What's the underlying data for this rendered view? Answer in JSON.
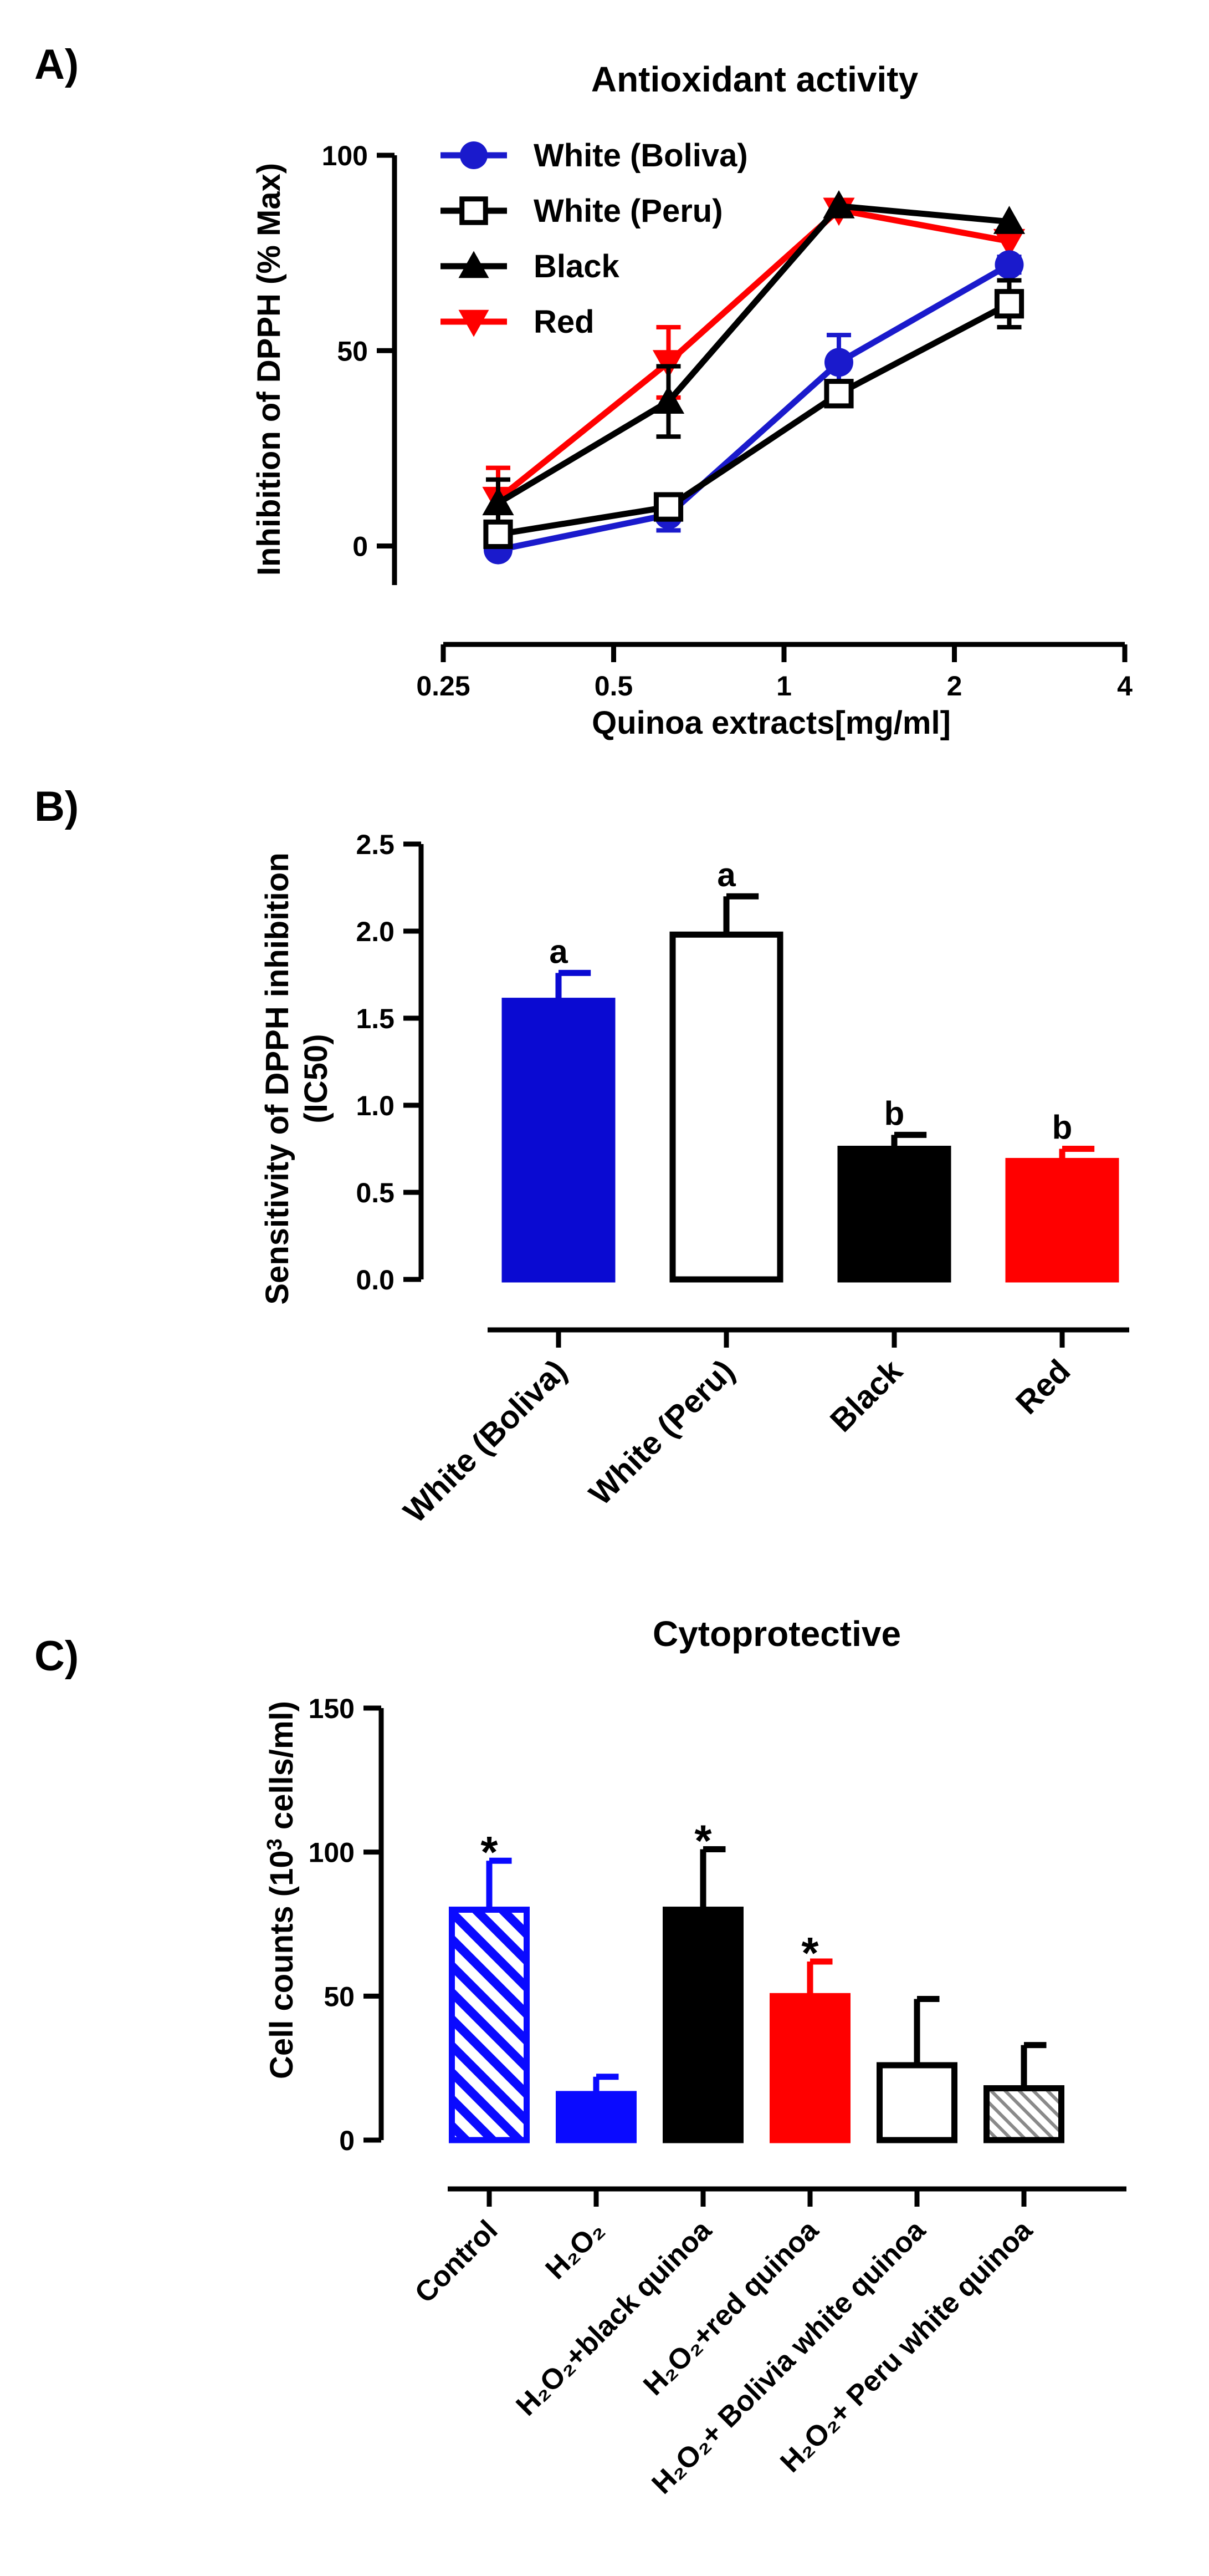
{
  "chart_data": [
    {
      "panel_label": "A)",
      "type": "line",
      "title": "Antioxidant activity",
      "xlabel": "Quinoa extracts[mg/ml]",
      "ylabel": "Inhibition of DPPH (% Max)",
      "xscale": "log2",
      "xlim": [
        0.25,
        4
      ],
      "ylim": [
        -10,
        100
      ],
      "xticks": [
        0.25,
        0.5,
        1,
        2,
        4
      ],
      "xtick_labels": [
        "0.25",
        "0.5",
        "1",
        "2",
        "4"
      ],
      "yticks": [
        0,
        50,
        100
      ],
      "ytick_labels": [
        "0",
        "50",
        "100"
      ],
      "x": [
        0.3125,
        0.625,
        1.25,
        2.5
      ],
      "legend_position": "top-left",
      "series": [
        {
          "name": "White (Boliva)",
          "color": "#1a1acc",
          "marker": "circle",
          "values": [
            -1,
            8,
            47,
            72
          ],
          "errors": [
            0,
            4,
            7,
            2
          ]
        },
        {
          "name": "White (Peru)",
          "color": "#000000",
          "marker": "square-open",
          "values": [
            3,
            10,
            39,
            62
          ],
          "errors": [
            3,
            3,
            3,
            6
          ]
        },
        {
          "name": "Black",
          "color": "#000000",
          "marker": "triangle",
          "values": [
            11,
            37,
            87,
            83
          ],
          "errors": [
            6,
            9,
            0,
            0
          ]
        },
        {
          "name": "Red",
          "color": "#ff0000",
          "marker": "triangle-down",
          "values": [
            12,
            47,
            86,
            78
          ],
          "errors": [
            8,
            9,
            0,
            0
          ]
        }
      ]
    },
    {
      "panel_label": "B)",
      "type": "bar",
      "title": "",
      "xlabel": "",
      "ylabel": "Sensitivity of DPPH inhibition",
      "ylabel2": "(IC50)",
      "ylim": [
        0,
        2.5
      ],
      "yticks": [
        0,
        0.5,
        1,
        1.5,
        2,
        2.5
      ],
      "ytick_labels": [
        "0.0",
        "0.5",
        "1.0",
        "1.5",
        "2.0",
        "2.5"
      ],
      "categories": [
        "White (Boliva)",
        "White (Peru)",
        "Black",
        "Red"
      ],
      "values": [
        1.6,
        1.98,
        0.75,
        0.68
      ],
      "errors": [
        0.16,
        0.22,
        0.08,
        0.07
      ],
      "annotations": [
        "a",
        "a",
        "b",
        "b"
      ],
      "colors": [
        "#0a0ad2",
        "#ffffff",
        "#000000",
        "#ff0000"
      ],
      "fills": [
        "solid",
        "open",
        "solid",
        "solid"
      ],
      "error_colors": [
        "#0a0ad2",
        "#000000",
        "#000000",
        "#ff0000"
      ]
    },
    {
      "panel_label": "C)",
      "type": "bar",
      "title": "Cytoprotective",
      "xlabel": "",
      "ylabel_pre": "Cell counts (10",
      "ylabel_sup": "3",
      "ylabel_post": " cells/ml)",
      "ylim": [
        0,
        150
      ],
      "yticks": [
        0,
        50,
        100,
        150
      ],
      "ytick_labels": [
        "0",
        "50",
        "100",
        "150"
      ],
      "categories": [
        "Control",
        "H₂O₂",
        "H₂O₂+black quinoa",
        "H₂O₂+red quinoa",
        "H₂O₂+ Bolivia white quinoa",
        "H₂O₂+ Peru white quinoa"
      ],
      "values": [
        80,
        16,
        80,
        50,
        26,
        18
      ],
      "errors": [
        17,
        6,
        21,
        12,
        23,
        15
      ],
      "annotations": [
        "*",
        "",
        "*",
        "*",
        "",
        ""
      ],
      "colors": [
        "#0a0aff",
        "#0a0aff",
        "#000000",
        "#ff0000",
        "#000000",
        "#000000"
      ],
      "fills": [
        "hatch-blue",
        "solid",
        "solid",
        "solid",
        "open",
        "hatch-gray"
      ],
      "error_colors": [
        "#0a0aff",
        "#0a0aff",
        "#000000",
        "#ff0000",
        "#000000",
        "#000000"
      ]
    }
  ]
}
